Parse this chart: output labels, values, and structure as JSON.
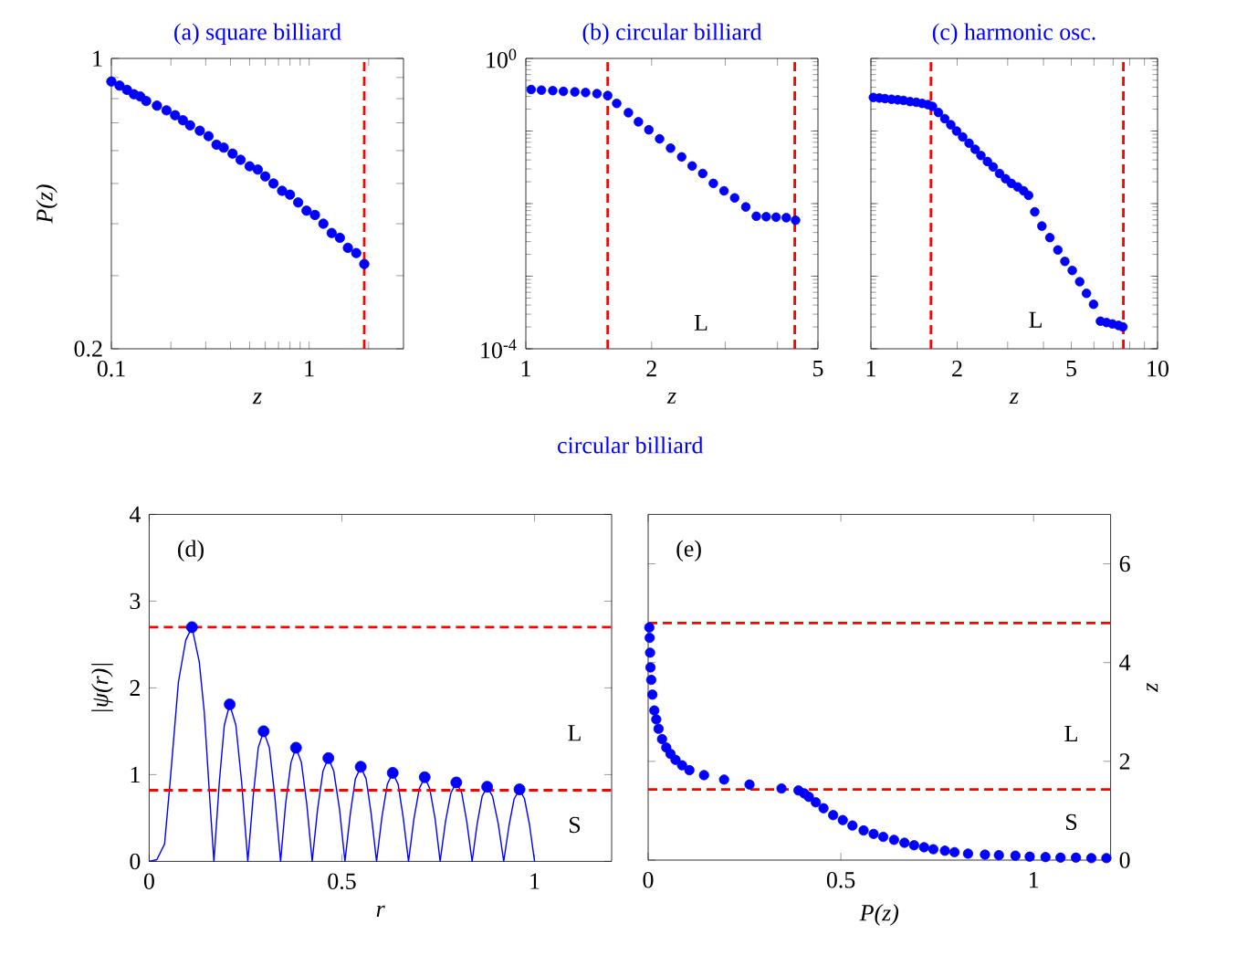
{
  "chart_data": [
    {
      "type": "scatter",
      "title": "(a) square billiard",
      "xlabel": "z",
      "ylabel": "P(z)",
      "log": "xy",
      "marker": "circle",
      "xlim": [
        0.1,
        3
      ],
      "ylim": [
        0.2,
        1
      ],
      "xticks": [
        0.1,
        {
          "value": 0.2,
          "label": null
        },
        {
          "value": 0.3,
          "label": null
        },
        {
          "value": 0.4,
          "label": null
        },
        {
          "value": 0.5,
          "label": null
        },
        {
          "value": 0.6,
          "label": null
        },
        {
          "value": 0.7,
          "label": null
        },
        {
          "value": 0.8,
          "label": null
        },
        {
          "value": 0.9,
          "label": null
        },
        1,
        {
          "value": 2,
          "label": null
        }
      ],
      "yticks": [
        0.2,
        {
          "value": 0.3,
          "label": null
        },
        {
          "value": 0.4,
          "label": null
        },
        {
          "value": 0.5,
          "label": null
        },
        {
          "value": 0.6,
          "label": null
        },
        {
          "value": 0.7,
          "label": null
        },
        {
          "value": 0.8,
          "label": null
        },
        {
          "value": 0.9,
          "label": null
        },
        1
      ],
      "ref_lines": [
        {
          "axis": "x",
          "value": 1.9,
          "color": "#ff0000",
          "line_style": "dashed"
        }
      ],
      "series": [
        {
          "color": "#0000ff",
          "x": [
            0.1,
            0.11,
            0.12,
            0.13,
            0.14,
            0.15,
            0.17,
            0.19,
            0.21,
            0.23,
            0.25,
            0.28,
            0.31,
            0.34,
            0.37,
            0.41,
            0.45,
            0.5,
            0.55,
            0.6,
            0.66,
            0.73,
            0.8,
            0.88,
            0.97,
            1.07,
            1.18,
            1.3,
            1.43,
            1.57,
            1.73,
            1.9
          ],
          "values": [
            0.88,
            0.86,
            0.84,
            0.82,
            0.81,
            0.79,
            0.77,
            0.75,
            0.73,
            0.71,
            0.69,
            0.67,
            0.65,
            0.62,
            0.61,
            0.59,
            0.57,
            0.55,
            0.54,
            0.52,
            0.5,
            0.48,
            0.47,
            0.45,
            0.43,
            0.42,
            0.4,
            0.38,
            0.37,
            0.35,
            0.34,
            0.32
          ]
        }
      ]
    },
    {
      "type": "scatter",
      "title": "(b) circular billiard",
      "xlabel": "z",
      "log": "xy",
      "marker": "circle",
      "xlim": [
        1,
        5
      ],
      "ylim": [
        0.0001,
        1
      ],
      "xticks": [
        1,
        2,
        {
          "value": 3,
          "label": null
        },
        {
          "value": 4,
          "label": null
        },
        5
      ],
      "yticks": [
        {
          "value": 0.0001,
          "label": "10$^{-4}$"
        },
        {
          "value": 0.001,
          "label": null
        },
        {
          "value": 0.01,
          "label": null
        },
        {
          "value": 0.1,
          "label": null
        },
        {
          "value": 1,
          "label": "10$^{0}$"
        }
      ],
      "annotations": [
        "L"
      ],
      "ref_lines": [
        {
          "axis": "x",
          "value": 1.57,
          "color": "#ff0000",
          "line_style": "dashed"
        },
        {
          "axis": "x",
          "value": 4.4,
          "color": "#ff0000",
          "line_style": "dashed"
        }
      ],
      "series": [
        {
          "color": "#0000ff",
          "x": [
            1.03,
            1.09,
            1.16,
            1.23,
            1.31,
            1.39,
            1.48,
            1.57,
            1.65,
            1.76,
            1.86,
            1.97,
            2.09,
            2.22,
            2.36,
            2.5,
            2.65,
            2.81,
            2.98,
            3.16,
            3.36,
            3.56,
            3.76,
            3.97,
            4.2,
            4.42
          ],
          "values": [
            0.373,
            0.366,
            0.36,
            0.352,
            0.346,
            0.339,
            0.327,
            0.308,
            0.24,
            0.179,
            0.134,
            0.104,
            0.078,
            0.058,
            0.044,
            0.033,
            0.026,
            0.019,
            0.015,
            0.012,
            0.009,
            0.0067,
            0.0066,
            0.0065,
            0.0064,
            0.0059
          ]
        }
      ]
    },
    {
      "type": "scatter",
      "title": "(c) harmonic osc.",
      "xlabel": "z",
      "log": "xy",
      "marker": "circle",
      "tick_labels": "x",
      "xlim": [
        1,
        10
      ],
      "ylim": [
        0.0001,
        1
      ],
      "xticks": [
        1,
        2,
        {
          "value": 3,
          "label": null
        },
        {
          "value": 4,
          "label": null
        },
        5,
        {
          "value": 6,
          "label": null
        },
        {
          "value": 7,
          "label": null
        },
        {
          "value": 8,
          "label": null
        },
        {
          "value": 9,
          "label": null
        },
        10
      ],
      "yticks": [
        {
          "value": 0.0001,
          "label": null
        },
        {
          "value": 0.001,
          "label": null
        },
        {
          "value": 0.01,
          "label": null
        },
        {
          "value": 0.1,
          "label": null
        },
        {
          "value": 1,
          "label": null
        }
      ],
      "annotations": [
        "L"
      ],
      "ref_lines": [
        {
          "axis": "x",
          "value": 1.62,
          "color": "#ff0000",
          "line_style": "dashed"
        },
        {
          "axis": "x",
          "value": 7.6,
          "color": "#ff0000",
          "line_style": "dashed"
        }
      ],
      "series": [
        {
          "color": "#0000ff",
          "x": [
            1.02,
            1.07,
            1.12,
            1.18,
            1.24,
            1.3,
            1.37,
            1.44,
            1.51,
            1.58,
            1.64,
            1.72,
            1.81,
            1.9,
            1.99,
            2.09,
            2.2,
            2.31,
            2.42,
            2.55,
            2.67,
            2.81,
            2.95,
            3.09,
            3.25,
            3.41,
            3.55,
            3.73,
            3.95,
            4.21,
            4.49,
            4.75,
            5.04,
            5.35,
            5.65,
            5.98,
            6.32,
            6.64,
            6.96,
            7.31,
            7.57
          ],
          "values": [
            0.29,
            0.285,
            0.28,
            0.274,
            0.269,
            0.264,
            0.254,
            0.249,
            0.24,
            0.231,
            0.218,
            0.18,
            0.148,
            0.122,
            0.1,
            0.083,
            0.068,
            0.056,
            0.046,
            0.038,
            0.032,
            0.026,
            0.022,
            0.019,
            0.017,
            0.015,
            0.013,
            0.0077,
            0.0049,
            0.0034,
            0.0023,
            0.0016,
            0.0012,
            0.00084,
            0.00058,
            0.00041,
            0.00024,
            0.00023,
            0.00022,
            0.00021,
            0.0002
          ]
        }
      ]
    },
    {
      "type": "line",
      "title": "circular billiard",
      "xlabel": "r",
      "ylabel": "|ψ(r)|",
      "xlim": [
        0,
        1.2
      ],
      "ylim": [
        0,
        4
      ],
      "xticks": [
        0,
        0.5,
        1
      ],
      "yticks": [
        0,
        1,
        2,
        3,
        4
      ],
      "annotations": [
        "(d)",
        "L",
        "S"
      ],
      "ref_lines": [
        {
          "axis": "y",
          "value": 2.7,
          "color": "#ff0000",
          "line_style": "dashed"
        },
        {
          "axis": "y",
          "value": 0.82,
          "color": "#ff0000",
          "line_style": "dashed"
        }
      ],
      "series": [
        {
          "type": "line",
          "color": "#0000ff",
          "x": [
            0,
            0.02,
            0.04,
            0.055,
            0.076,
            0.095,
            0.111,
            0.13,
            0.143,
            0.158,
            0.168,
            0.182,
            0.195,
            0.209,
            0.225,
            0.24,
            0.256,
            0.27,
            0.283,
            0.297,
            0.312,
            0.326,
            0.341,
            0.354,
            0.368,
            0.381,
            0.395,
            0.409,
            0.423,
            0.437,
            0.451,
            0.465,
            0.479,
            0.494,
            0.508,
            0.522,
            0.535,
            0.549,
            0.563,
            0.576,
            0.59,
            0.604,
            0.618,
            0.632,
            0.646,
            0.659,
            0.673,
            0.687,
            0.701,
            0.715,
            0.728,
            0.742,
            0.755,
            0.769,
            0.783,
            0.797,
            0.811,
            0.824,
            0.838,
            0.851,
            0.864,
            0.877,
            0.891,
            0.906,
            0.92,
            0.934,
            0.947,
            0.961,
            0.974,
            0.987,
            1.0
          ],
          "values": [
            0,
            0.02,
            0.2,
            0.95,
            2.07,
            2.55,
            2.7,
            2.3,
            1.72,
            0.67,
            0,
            0.91,
            1.57,
            1.81,
            1.57,
            0.91,
            0,
            0.75,
            1.31,
            1.5,
            1.31,
            0.75,
            0,
            0.66,
            1.14,
            1.31,
            1.14,
            0.66,
            0,
            0.6,
            1.04,
            1.19,
            1.04,
            0.6,
            0,
            0.55,
            0.95,
            1.09,
            0.95,
            0.55,
            0,
            0.51,
            0.89,
            1.02,
            0.89,
            0.51,
            0,
            0.49,
            0.84,
            0.97,
            0.84,
            0.49,
            0,
            0.46,
            0.79,
            0.91,
            0.79,
            0.46,
            0,
            0.43,
            0.75,
            0.86,
            0.75,
            0.43,
            0,
            0.42,
            0.72,
            0.83,
            0.72,
            0.42,
            0
          ]
        },
        {
          "type": "scatter",
          "marker": "circle",
          "color": "#0000ff",
          "x": [
            0.111,
            0.209,
            0.297,
            0.381,
            0.465,
            0.549,
            0.632,
            0.715,
            0.797,
            0.877,
            0.961
          ],
          "values": [
            2.7,
            1.81,
            1.5,
            1.31,
            1.19,
            1.09,
            1.02,
            0.97,
            0.91,
            0.86,
            0.83
          ]
        }
      ]
    },
    {
      "type": "scatter",
      "xlabel": "P(z)",
      "y2label": "z",
      "marker": "circle",
      "xlim": [
        0,
        1.2
      ],
      "y2lim": [
        0,
        7
      ],
      "xticks": [
        0,
        0.5,
        1
      ],
      "y2ticks": [
        0,
        2,
        4,
        6
      ],
      "annotations": [
        "(e)",
        "L",
        "S"
      ],
      "ref_lines": [
        {
          "axis": "y2",
          "value": 4.8,
          "color": "#ff0000",
          "line_style": "dashed"
        },
        {
          "axis": "y2",
          "value": 1.43,
          "color": "#ff0000",
          "line_style": "dashed"
        }
      ],
      "series": [
        {
          "axis": "y2",
          "color": "#0000ff",
          "x": [
            0.003,
            0.004,
            0.005,
            0.006,
            0.008,
            0.011,
            0.016,
            0.021,
            0.027,
            0.036,
            0.047,
            0.058,
            0.071,
            0.088,
            0.107,
            0.145,
            0.197,
            0.263,
            0.346,
            0.39,
            0.405,
            0.417,
            0.435,
            0.455,
            0.48,
            0.505,
            0.53,
            0.559,
            0.585,
            0.61,
            0.638,
            0.665,
            0.69,
            0.716,
            0.74,
            0.77,
            0.795,
            0.83,
            0.874,
            0.91,
            0.953,
            0.99,
            1.031,
            1.07,
            1.11,
            1.15,
            1.189
          ],
          "values": [
            4.71,
            4.5,
            4.2,
            3.9,
            3.65,
            3.35,
            3.03,
            2.85,
            2.66,
            2.45,
            2.28,
            2.15,
            2.03,
            1.92,
            1.82,
            1.72,
            1.63,
            1.53,
            1.45,
            1.41,
            1.35,
            1.28,
            1.17,
            1.05,
            0.91,
            0.81,
            0.7,
            0.6,
            0.53,
            0.47,
            0.41,
            0.35,
            0.3,
            0.26,
            0.22,
            0.19,
            0.16,
            0.13,
            0.11,
            0.1,
            0.09,
            0.07,
            0.06,
            0.05,
            0.05,
            0.04,
            0.04
          ]
        }
      ]
    }
  ]
}
